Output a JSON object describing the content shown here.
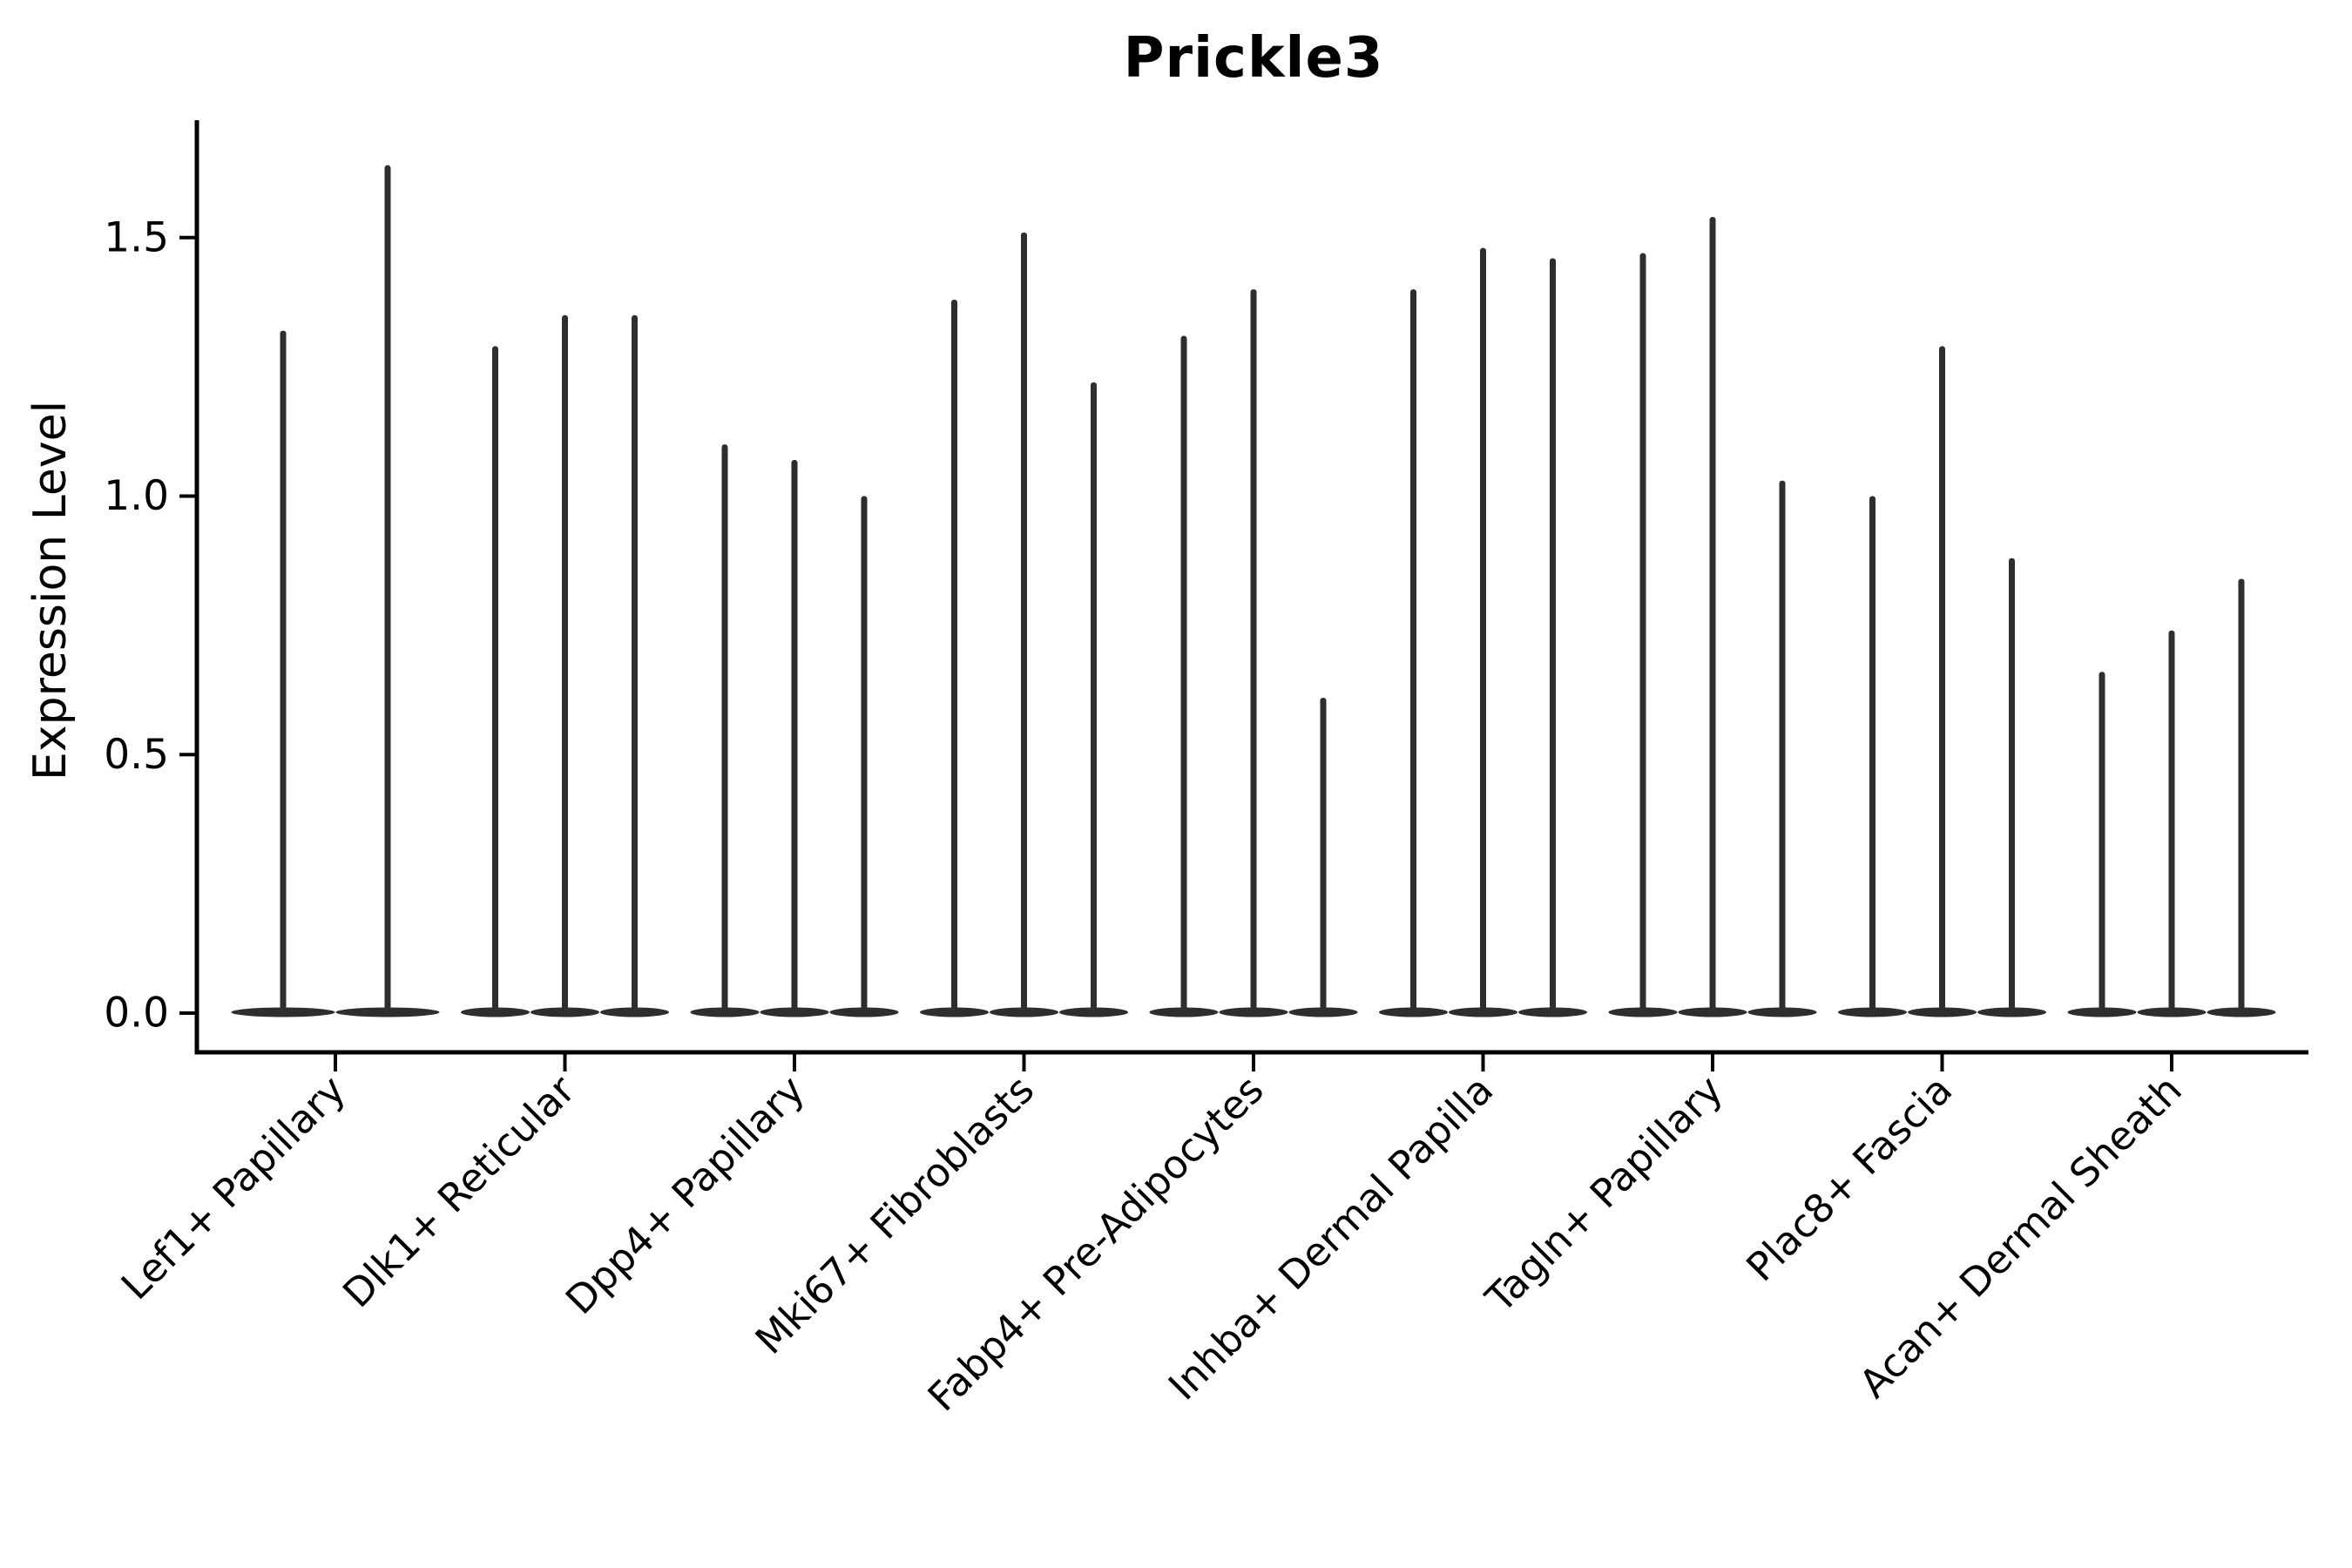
{
  "title": "Prickle3",
  "y_axis": {
    "label": "Expression Level",
    "tick_labels": [
      "0.0",
      "0.5",
      "1.0",
      "1.5"
    ]
  },
  "chart_data": {
    "type": "violin",
    "title": "Prickle3",
    "xlabel": "",
    "ylabel": "Expression Level",
    "ylim": [
      0,
      1.72
    ],
    "yticks": [
      0.0,
      0.5,
      1.0,
      1.5
    ],
    "grid": false,
    "legend": null,
    "shape_note": "zero-inflated violins: wide flat bulge at 0 with a thin spike rising to the maximum expression value",
    "categories": [
      {
        "label": "Lef1+ Papillary",
        "violin_maxima": [
          1.32,
          1.64
        ]
      },
      {
        "label": "Dlk1+ Reticular",
        "violin_maxima": [
          1.29,
          1.35,
          1.35
        ]
      },
      {
        "label": "Dpp4+ Papillary",
        "violin_maxima": [
          1.1,
          1.07,
          1.0
        ]
      },
      {
        "label": "Mki67+ Fibroblasts",
        "violin_maxima": [
          1.38,
          1.51,
          1.22
        ]
      },
      {
        "label": "Fabp4+ Pre-Adipocytes",
        "violin_maxima": [
          1.31,
          1.4,
          0.61
        ]
      },
      {
        "label": "Inhba+ Dermal Papilla",
        "violin_maxima": [
          1.4,
          1.48,
          1.46
        ]
      },
      {
        "label": "Tagln+ Papillary",
        "violin_maxima": [
          1.47,
          1.54,
          1.03
        ]
      },
      {
        "label": "Plac8+ Fascia",
        "violin_maxima": [
          1.0,
          1.29,
          0.88
        ]
      },
      {
        "label": "Acan+ Dermal Sheath",
        "violin_maxima": [
          0.66,
          0.74,
          0.84
        ]
      }
    ]
  },
  "style": {
    "background": "#ffffff",
    "axis_color": "#000000",
    "violin_color": "#2e2e2e",
    "text_color": "#000000"
  }
}
